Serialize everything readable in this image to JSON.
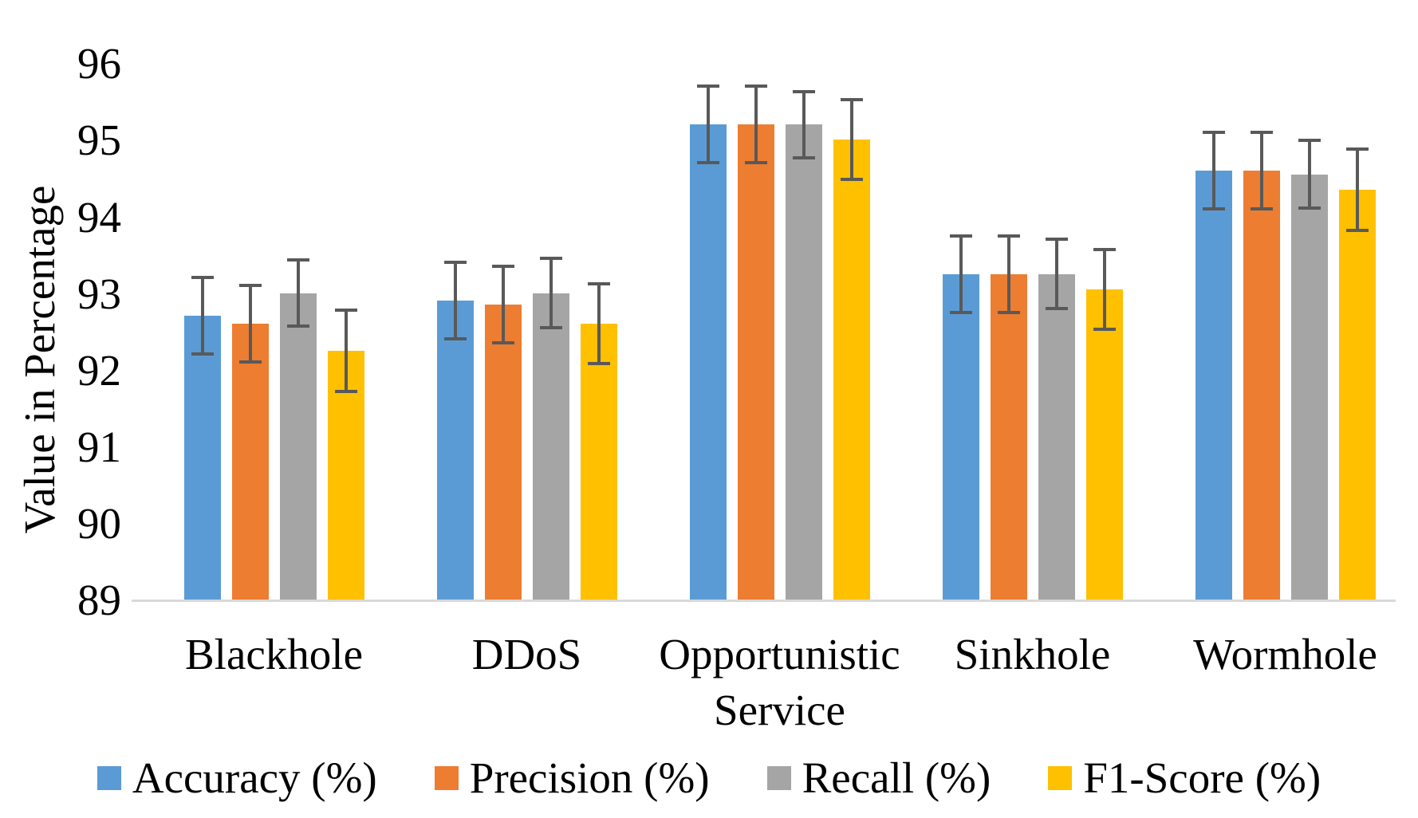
{
  "chart_data": {
    "type": "bar",
    "title": "",
    "xlabel": "",
    "ylabel": "Value in Percentage",
    "ylim": [
      89,
      96
    ],
    "yticks": [
      "96",
      "95",
      "94",
      "93",
      "92",
      "91",
      "90",
      "89"
    ],
    "grid": false,
    "legend_position": "bottom",
    "error_bars": true,
    "categories": [
      "Blackhole",
      "DDoS",
      "Opportunistic Service",
      "Sinkhole",
      "Wormhole"
    ],
    "series": [
      {
        "name": "Accuracy (%)",
        "color": "#5B9BD5",
        "values": [
          92.7,
          92.9,
          95.2,
          93.25,
          94.6
        ],
        "errors": [
          0.5,
          0.5,
          0.5,
          0.5,
          0.5
        ]
      },
      {
        "name": "Precision (%)",
        "color": "#ED7D31",
        "values": [
          92.6,
          92.85,
          95.2,
          93.25,
          94.6
        ],
        "errors": [
          0.5,
          0.5,
          0.5,
          0.5,
          0.5
        ]
      },
      {
        "name": "Recall (%)",
        "color": "#A5A5A5",
        "values": [
          93.0,
          93.0,
          95.2,
          93.25,
          94.55
        ],
        "errors": [
          0.43,
          0.45,
          0.43,
          0.45,
          0.44
        ]
      },
      {
        "name": "F1-Score (%)",
        "color": "#FFC000",
        "values": [
          92.25,
          92.6,
          95.0,
          93.05,
          94.35
        ],
        "errors": [
          0.53,
          0.52,
          0.52,
          0.52,
          0.53
        ]
      }
    ]
  }
}
